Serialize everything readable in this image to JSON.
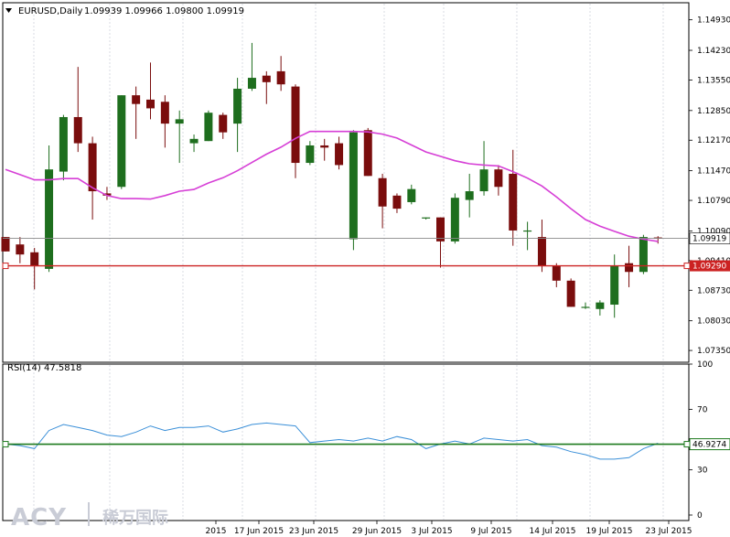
{
  "header": {
    "symbol": "EURUSD,Daily",
    "ohlc": "1.09939 1.09966 1.09800 1.09919"
  },
  "rsi_header": {
    "label": "RSI(14) 47.5818"
  },
  "logo": {
    "latin": "ACY",
    "cjk": "稀万国际"
  },
  "colors": {
    "up": "#1e6e1e",
    "down": "#7a0d0d",
    "ma": "#d63fd6",
    "rsi": "#3a8fd8",
    "hline": "#1e7a1e",
    "redline": "#cc2222",
    "grid": "#c8cdd8"
  },
  "chart_data": [
    {
      "type": "candlestick",
      "ylim": [
        1.071,
        1.153
      ],
      "price_ticks": [
        "1.14930",
        "1.14230",
        "1.13550",
        "1.12850",
        "1.12170",
        "1.11470",
        "1.10790",
        "1.10090",
        "1.09410",
        "1.08730",
        "1.08030",
        "1.07350"
      ],
      "current_price": "1.09919",
      "hline_price": "1.09290",
      "candles": [
        {
          "o": 1.0995,
          "h": 1.0995,
          "l": 1.0962,
          "c": 1.0962
        },
        {
          "o": 1.0978,
          "h": 1.0995,
          "l": 1.0935,
          "c": 1.0955
        },
        {
          "o": 1.096,
          "h": 1.097,
          "l": 1.0875,
          "c": 1.0928
        },
        {
          "o": 1.0922,
          "h": 1.1205,
          "l": 1.0915,
          "c": 1.115
        },
        {
          "o": 1.1145,
          "h": 1.1275,
          "l": 1.1125,
          "c": 1.127
        },
        {
          "o": 1.127,
          "h": 1.1385,
          "l": 1.119,
          "c": 1.121
        },
        {
          "o": 1.121,
          "h": 1.1225,
          "l": 1.1035,
          "c": 1.11
        },
        {
          "o": 1.1095,
          "h": 1.111,
          "l": 1.108,
          "c": 1.109
        },
        {
          "o": 1.111,
          "h": 1.132,
          "l": 1.1105,
          "c": 1.132
        },
        {
          "o": 1.132,
          "h": 1.134,
          "l": 1.122,
          "c": 1.13
        },
        {
          "o": 1.131,
          "h": 1.1395,
          "l": 1.1265,
          "c": 1.129
        },
        {
          "o": 1.1305,
          "h": 1.132,
          "l": 1.12,
          "c": 1.1255
        },
        {
          "o": 1.1255,
          "h": 1.1285,
          "l": 1.1165,
          "c": 1.1265
        },
        {
          "o": 1.121,
          "h": 1.123,
          "l": 1.119,
          "c": 1.122
        },
        {
          "o": 1.1215,
          "h": 1.1285,
          "l": 1.1215,
          "c": 1.128
        },
        {
          "o": 1.1275,
          "h": 1.128,
          "l": 1.122,
          "c": 1.1235
        },
        {
          "o": 1.1255,
          "h": 1.136,
          "l": 1.119,
          "c": 1.1335
        },
        {
          "o": 1.1335,
          "h": 1.144,
          "l": 1.133,
          "c": 1.136
        },
        {
          "o": 1.1365,
          "h": 1.1375,
          "l": 1.13,
          "c": 1.135
        },
        {
          "o": 1.1375,
          "h": 1.141,
          "l": 1.133,
          "c": 1.1345
        },
        {
          "o": 1.134,
          "h": 1.1345,
          "l": 1.113,
          "c": 1.1165
        },
        {
          "o": 1.1165,
          "h": 1.1215,
          "l": 1.116,
          "c": 1.1205
        },
        {
          "o": 1.1205,
          "h": 1.122,
          "l": 1.117,
          "c": 1.12
        },
        {
          "o": 1.121,
          "h": 1.1225,
          "l": 1.115,
          "c": 1.116
        },
        {
          "o": 1.099,
          "h": 1.124,
          "l": 1.0965,
          "c": 1.1235
        },
        {
          "o": 1.124,
          "h": 1.1245,
          "l": 1.1135,
          "c": 1.1135
        },
        {
          "o": 1.113,
          "h": 1.114,
          "l": 1.1015,
          "c": 1.1065
        },
        {
          "o": 1.109,
          "h": 1.1095,
          "l": 1.105,
          "c": 1.106
        },
        {
          "o": 1.1075,
          "h": 1.1115,
          "l": 1.107,
          "c": 1.1105
        },
        {
          "o": 1.104,
          "h": 1.104,
          "l": 1.1035,
          "c": 1.104
        },
        {
          "o": 1.104,
          "h": 1.104,
          "l": 1.0925,
          "c": 1.0985
        },
        {
          "o": 1.0985,
          "h": 1.1095,
          "l": 1.098,
          "c": 1.1085
        },
        {
          "o": 1.108,
          "h": 1.114,
          "l": 1.104,
          "c": 1.11
        },
        {
          "o": 1.11,
          "h": 1.1215,
          "l": 1.109,
          "c": 1.115
        },
        {
          "o": 1.115,
          "h": 1.116,
          "l": 1.109,
          "c": 1.111
        },
        {
          "o": 1.114,
          "h": 1.1195,
          "l": 1.0975,
          "c": 1.101
        },
        {
          "o": 1.101,
          "h": 1.103,
          "l": 1.0965,
          "c": 1.101
        },
        {
          "o": 1.0995,
          "h": 1.1035,
          "l": 1.0915,
          "c": 1.093
        },
        {
          "o": 1.093,
          "h": 1.0935,
          "l": 1.088,
          "c": 1.0895
        },
        {
          "o": 1.0895,
          "h": 1.09,
          "l": 1.0835,
          "c": 1.0835
        },
        {
          "o": 1.0835,
          "h": 1.0845,
          "l": 1.083,
          "c": 1.0835
        },
        {
          "o": 1.083,
          "h": 1.085,
          "l": 1.0815,
          "c": 1.0845
        },
        {
          "o": 1.084,
          "h": 1.0955,
          "l": 1.081,
          "c": 1.093
        },
        {
          "o": 1.0935,
          "h": 1.0975,
          "l": 1.088,
          "c": 1.0915
        },
        {
          "o": 1.0915,
          "h": 1.1,
          "l": 1.091,
          "c": 1.0995
        },
        {
          "o": 1.0994,
          "h": 1.0997,
          "l": 1.098,
          "c": 1.0992
        }
      ],
      "moving_average": [
        1.115,
        1.1138,
        1.1126,
        1.1126,
        1.1129,
        1.1129,
        1.1108,
        1.109,
        1.1083,
        1.1083,
        1.1082,
        1.109,
        1.11,
        1.1104,
        1.1119,
        1.1131,
        1.1147,
        1.1166,
        1.1185,
        1.1201,
        1.1221,
        1.1237,
        1.1237,
        1.1237,
        1.1237,
        1.1236,
        1.1231,
        1.1222,
        1.1206,
        1.119,
        1.118,
        1.117,
        1.1163,
        1.116,
        1.1158,
        1.1145,
        1.113,
        1.1112,
        1.1087,
        1.106,
        1.1035,
        1.102,
        1.1008,
        1.0997,
        1.099,
        1.0985
      ]
    },
    {
      "type": "line",
      "ylim": [
        0,
        100
      ],
      "rsi_ticks": [
        "100",
        "70",
        "30",
        "0"
      ],
      "hline_value": 46.9274,
      "hline_label": "46.9274",
      "values": [
        47,
        46,
        44,
        56,
        60,
        58,
        56,
        53,
        52,
        55,
        59,
        56,
        58,
        58,
        59,
        55,
        57,
        60,
        61,
        60,
        59,
        48,
        49,
        50,
        49,
        51,
        49,
        52,
        50,
        44,
        47,
        49,
        47,
        51,
        50,
        49,
        50,
        46,
        45,
        42,
        40,
        37,
        37,
        38,
        44,
        47.58
      ]
    }
  ],
  "dates": [
    "2015",
    "17 Jun 2015",
    "23 Jun 2015",
    "29 Jun 2015",
    "3 Jul 2015",
    "9 Jul 2015",
    "14 Jul 2015",
    "19 Jul 2015",
    "23 Jul 2015"
  ]
}
